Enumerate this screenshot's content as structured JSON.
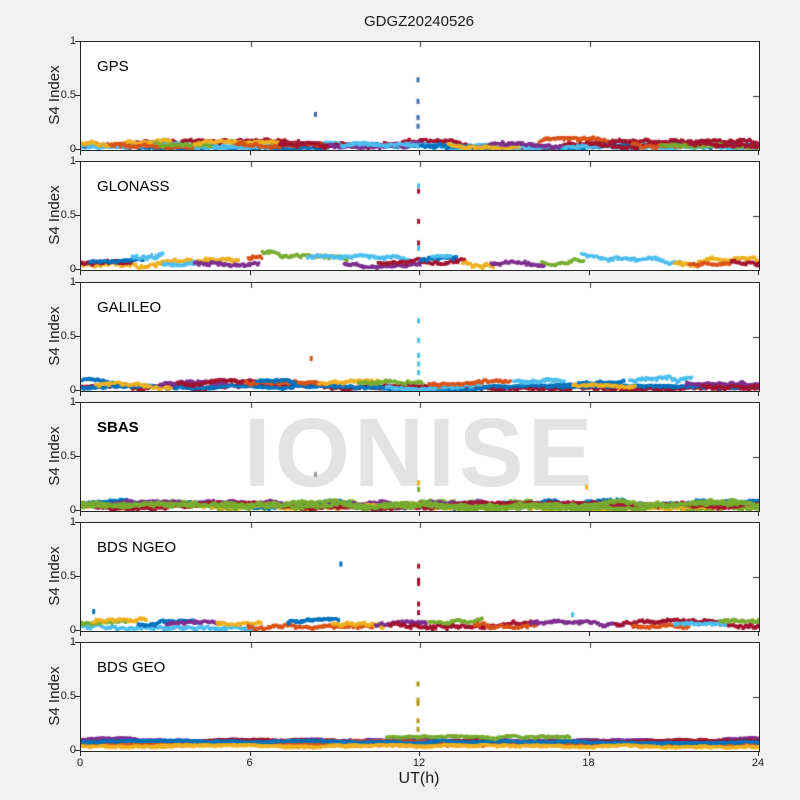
{
  "colors": {
    "background": "#F1F1F1",
    "panel_background": "#FFFFFF",
    "axis": "#262626",
    "text": "#1A1A1A",
    "watermark": "#E3E3E3"
  },
  "chart_data": {
    "type": "scatter",
    "title": "GDGZ20240526",
    "xlabel": "UT(h)",
    "ylabel": "S4 Index",
    "watermark": "IONISE",
    "xlim": [
      0,
      24
    ],
    "ylim": [
      0,
      1
    ],
    "xticks": [
      0,
      6,
      12,
      18,
      24
    ],
    "yticks": [
      0,
      0.5,
      1
    ],
    "grid": false,
    "legend": "none",
    "palette": {
      "blue": "#0072BD",
      "orange": "#D95319",
      "yellow": "#EDB120",
      "purple": "#7E2F8E",
      "green": "#77AC30",
      "lightblue": "#4DBEEE",
      "darkred": "#A2142F",
      "steelblue": "#3E6FA6",
      "olive": "#AD9B22",
      "gray": "#9A9A9A"
    },
    "panels": [
      {
        "label": "GPS",
        "bold": false,
        "slug": "gps",
        "bands": [
          [
            0,
            24,
            0.035,
            0.035,
            0.02,
            "lightblue"
          ],
          [
            0,
            24,
            0.05,
            0.05,
            0.03,
            "blue"
          ],
          [
            0,
            24,
            0.06,
            0.06,
            0.035,
            "darkred"
          ],
          [
            0,
            24,
            0.045,
            0.045,
            0.025,
            "lightblue"
          ],
          [
            0,
            3.2,
            0.07,
            0.07,
            0.03,
            "yellow"
          ],
          [
            1,
            4,
            0.06,
            0.06,
            0.03,
            "orange"
          ],
          [
            2.6,
            4.6,
            0.075,
            0.075,
            0.03,
            "green"
          ],
          [
            4,
            7,
            0.055,
            0.055,
            0.03,
            "yellow"
          ],
          [
            5.5,
            8.5,
            0.07,
            0.07,
            0.035,
            "orange"
          ],
          [
            7,
            9.5,
            0.06,
            0.06,
            0.03,
            "darkred"
          ],
          [
            8.8,
            12,
            0.055,
            0.055,
            0.03,
            "purple"
          ],
          [
            9.2,
            12.2,
            0.04,
            0.04,
            0.02,
            "lightblue"
          ],
          [
            12,
            14.5,
            0.06,
            0.06,
            0.03,
            "blue"
          ],
          [
            13,
            15.5,
            0.055,
            0.055,
            0.03,
            "yellow"
          ],
          [
            14.5,
            17,
            0.06,
            0.06,
            0.03,
            "purple"
          ],
          [
            16.2,
            18.6,
            0.075,
            0.075,
            0.04,
            "orange"
          ],
          [
            18,
            20.5,
            0.06,
            0.06,
            0.03,
            "darkred"
          ],
          [
            19.5,
            22,
            0.065,
            0.065,
            0.03,
            "orange"
          ],
          [
            20.5,
            24,
            0.05,
            0.05,
            0.025,
            "green"
          ],
          [
            21.5,
            24,
            0.07,
            0.07,
            0.035,
            "darkred"
          ]
        ],
        "spikes": [
          {
            "x": 8.3,
            "color": "steelblue",
            "ys": [
              0.33
            ]
          },
          {
            "x": 11.93,
            "color": "steelblue",
            "ys": [
              0.65,
              0.45,
              0.3,
              0.22
            ]
          }
        ]
      },
      {
        "label": "GLONASS",
        "bold": false,
        "slug": "glonass",
        "bands": [
          [
            0,
            5.6,
            0.065,
            0.065,
            0.04,
            "yellow"
          ],
          [
            0,
            1.8,
            0.075,
            0.075,
            0.035,
            "darkred"
          ],
          [
            0.3,
            2.2,
            0.08,
            0.08,
            0.03,
            "blue"
          ],
          [
            1.8,
            2.9,
            0.13,
            0.13,
            0.045,
            "lightblue"
          ],
          [
            2.9,
            4.1,
            0.07,
            0.07,
            0.03,
            "lightblue"
          ],
          [
            4,
            6.3,
            0.08,
            0.08,
            0.035,
            "purple"
          ],
          [
            5.9,
            6.4,
            0.12,
            0.12,
            0.03,
            "orange"
          ],
          [
            6.4,
            9.4,
            0.17,
            0.11,
            0.03,
            "green"
          ],
          [
            8,
            11.6,
            0.13,
            0.12,
            0.025,
            "lightblue"
          ],
          [
            9.3,
            12,
            0.065,
            0.065,
            0.03,
            "purple"
          ],
          [
            10.5,
            12,
            0.08,
            0.08,
            0.03,
            "darkred"
          ],
          [
            12,
            13.6,
            0.08,
            0.08,
            0.04,
            "darkred"
          ],
          [
            12,
            13.3,
            0.09,
            0.09,
            0.035,
            "blue"
          ],
          [
            12.4,
            13.1,
            0.13,
            0.13,
            0.02,
            "lightblue"
          ],
          [
            13.5,
            14.6,
            0.075,
            0.075,
            0.035,
            "yellow"
          ],
          [
            14.5,
            16.4,
            0.07,
            0.07,
            0.035,
            "purple"
          ],
          [
            16.3,
            17.8,
            0.075,
            0.075,
            0.035,
            "green"
          ],
          [
            17.7,
            21.2,
            0.15,
            0.09,
            0.03,
            "lightblue"
          ],
          [
            21,
            24,
            0.075,
            0.075,
            0.04,
            "yellow"
          ],
          [
            21.5,
            23,
            0.065,
            0.065,
            0.03,
            "orange"
          ],
          [
            23,
            24,
            0.08,
            0.08,
            0.03,
            "darkred"
          ]
        ],
        "spikes": [
          {
            "x": 11.95,
            "color": "lightblue",
            "ys": [
              0.78,
              0.2
            ]
          },
          {
            "x": 11.95,
            "color": "darkred",
            "ys": [
              0.73,
              0.45,
              0.25
            ]
          }
        ]
      },
      {
        "label": "GALILEO",
        "bold": false,
        "slug": "galileo",
        "bands": [
          [
            0,
            24,
            0.04,
            0.04,
            0.022,
            "darkred"
          ],
          [
            0,
            24,
            0.035,
            0.035,
            0.02,
            "blue"
          ],
          [
            0,
            1.2,
            0.1,
            0.07,
            0.025,
            "blue"
          ],
          [
            0.5,
            3.2,
            0.06,
            0.06,
            0.03,
            "yellow"
          ],
          [
            2.8,
            5.2,
            0.065,
            0.065,
            0.03,
            "purple"
          ],
          [
            3.4,
            6.2,
            0.075,
            0.075,
            0.03,
            "darkred"
          ],
          [
            5.8,
            8.6,
            0.08,
            0.08,
            0.03,
            "orange"
          ],
          [
            6.2,
            7.6,
            0.09,
            0.09,
            0.025,
            "blue"
          ],
          [
            8.4,
            10.6,
            0.07,
            0.07,
            0.03,
            "yellow"
          ],
          [
            9.8,
            12.1,
            0.075,
            0.075,
            0.03,
            "green"
          ],
          [
            10.8,
            14.2,
            0.05,
            0.05,
            0.03,
            "lightblue"
          ],
          [
            12.3,
            15.2,
            0.07,
            0.07,
            0.03,
            "orange"
          ],
          [
            15.3,
            17.1,
            0.1,
            0.1,
            0.028,
            "lightblue"
          ],
          [
            16.8,
            19.2,
            0.07,
            0.07,
            0.03,
            "blue"
          ],
          [
            17.4,
            19.6,
            0.06,
            0.06,
            0.028,
            "yellow"
          ],
          [
            19.4,
            21.6,
            0.1,
            0.12,
            0.035,
            "lightblue"
          ],
          [
            21.4,
            24,
            0.07,
            0.07,
            0.03,
            "purple"
          ],
          [
            22,
            24,
            0.055,
            0.055,
            0.025,
            "darkred"
          ]
        ],
        "spikes": [
          {
            "x": 8.15,
            "color": "orange",
            "ys": [
              0.3
            ]
          },
          {
            "x": 11.95,
            "color": "lightblue",
            "ys": [
              0.65,
              0.47,
              0.33,
              0.25,
              0.17
            ]
          }
        ]
      },
      {
        "label": "SBAS",
        "bold": true,
        "slug": "sbas",
        "bands": [
          [
            0,
            24,
            0.06,
            0.06,
            0.035,
            "green"
          ],
          [
            0,
            24,
            0.07,
            0.07,
            0.035,
            "blue"
          ],
          [
            0,
            24,
            0.065,
            0.065,
            0.03,
            "purple"
          ],
          [
            0,
            24,
            0.045,
            0.045,
            0.025,
            "yellow"
          ],
          [
            0,
            24,
            0.055,
            0.055,
            0.028,
            "darkred"
          ],
          [
            0,
            24,
            0.05,
            0.05,
            0.03,
            "green"
          ],
          [
            0,
            24,
            0.075,
            0.075,
            0.03,
            "green"
          ]
        ],
        "spikes": [
          {
            "x": 8.3,
            "color": "gray",
            "ys": [
              0.34
            ]
          },
          {
            "x": 11.95,
            "color": "yellow",
            "ys": [
              0.26
            ]
          },
          {
            "x": 11.95,
            "color": "green",
            "ys": [
              0.2
            ]
          },
          {
            "x": 17.9,
            "color": "yellow",
            "ys": [
              0.22
            ]
          }
        ]
      },
      {
        "label": "BDS NGEO",
        "bold": false,
        "slug": "bds-ngeo",
        "bands": [
          [
            0,
            6.2,
            0.055,
            0.055,
            0.03,
            "lightblue"
          ],
          [
            0,
            1.6,
            0.075,
            0.075,
            0.03,
            "green"
          ],
          [
            0.4,
            2.3,
            0.09,
            0.09,
            0.03,
            "yellow"
          ],
          [
            2,
            4.2,
            0.07,
            0.07,
            0.03,
            "blue"
          ],
          [
            3,
            5,
            0.065,
            0.065,
            0.025,
            "purple"
          ],
          [
            4.8,
            6.4,
            0.075,
            0.075,
            0.025,
            "yellow"
          ],
          [
            5.9,
            10.3,
            0.055,
            0.055,
            0.03,
            "orange"
          ],
          [
            7.3,
            9.1,
            0.09,
            0.09,
            0.03,
            "blue"
          ],
          [
            8.9,
            10.7,
            0.075,
            0.075,
            0.03,
            "yellow"
          ],
          [
            10.4,
            12.2,
            0.065,
            0.065,
            0.03,
            "purple"
          ],
          [
            10.9,
            16.2,
            0.07,
            0.07,
            0.035,
            "darkred"
          ],
          [
            12.3,
            14.2,
            0.095,
            0.095,
            0.03,
            "green"
          ],
          [
            13.9,
            16.1,
            0.065,
            0.065,
            0.03,
            "orange"
          ],
          [
            15.9,
            19.2,
            0.07,
            0.07,
            0.03,
            "purple"
          ],
          [
            18.9,
            24,
            0.075,
            0.075,
            0.035,
            "darkred"
          ],
          [
            19.5,
            21.5,
            0.06,
            0.06,
            0.025,
            "orange"
          ],
          [
            21,
            22.8,
            0.065,
            0.065,
            0.025,
            "lightblue"
          ],
          [
            22.6,
            24,
            0.09,
            0.09,
            0.03,
            "green"
          ]
        ],
        "spikes": [
          {
            "x": 0.45,
            "color": "blue",
            "ys": [
              0.18
            ]
          },
          {
            "x": 9.2,
            "color": "blue",
            "ys": [
              0.62
            ]
          },
          {
            "x": 11.95,
            "color": "darkred",
            "ys": [
              0.6,
              0.47,
              0.44,
              0.25,
              0.17
            ]
          },
          {
            "x": 17.4,
            "color": "lightblue",
            "ys": [
              0.15
            ]
          }
        ]
      },
      {
        "label": "BDS GEO",
        "bold": false,
        "slug": "bds-geo",
        "bands": [
          [
            0,
            24,
            0.112,
            0.112,
            0.016,
            "purple"
          ],
          [
            0,
            24,
            0.098,
            0.098,
            0.014,
            "darkred"
          ],
          [
            0,
            24,
            0.082,
            0.082,
            0.014,
            "orange"
          ],
          [
            0,
            24,
            0.06,
            0.06,
            0.016,
            "yellow"
          ],
          [
            0,
            24,
            0.072,
            0.072,
            0.012,
            "orange"
          ],
          [
            0,
            24,
            0.09,
            0.09,
            0.012,
            "blue"
          ],
          [
            0,
            24,
            0.05,
            0.05,
            0.012,
            "yellow"
          ],
          [
            10.8,
            17.3,
            0.128,
            0.128,
            0.016,
            "green"
          ]
        ],
        "spikes": [
          {
            "x": 11.93,
            "color": "olive",
            "ys": [
              0.62,
              0.47,
              0.44,
              0.28,
              0.2
            ]
          }
        ]
      }
    ]
  }
}
